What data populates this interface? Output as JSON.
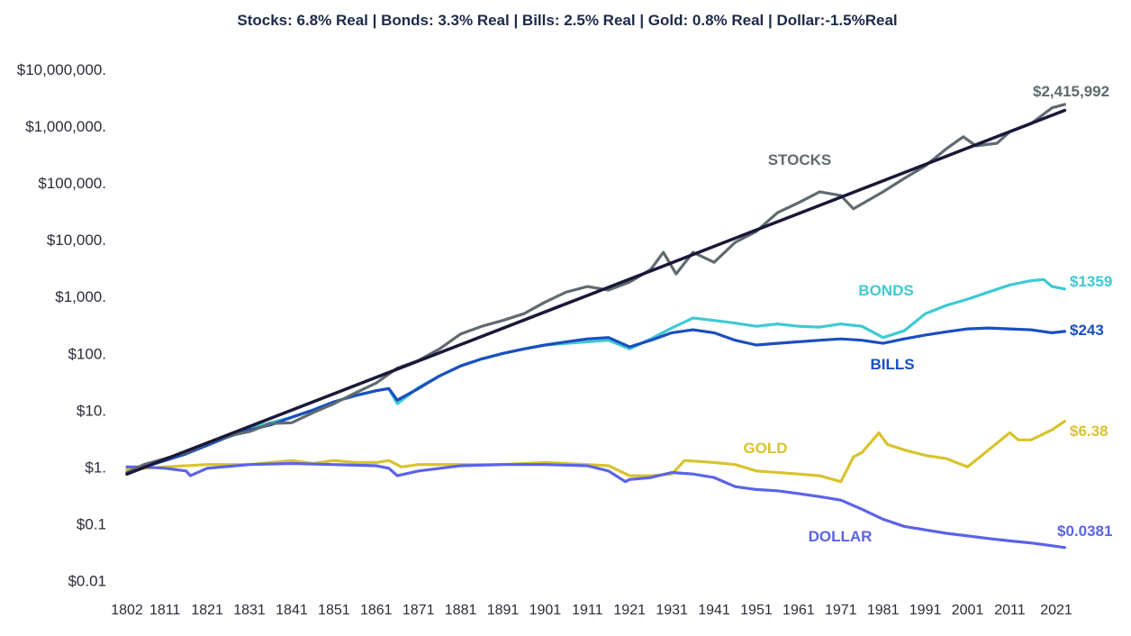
{
  "chart_data": {
    "type": "line",
    "title": "Stocks: 6.8% Real | Bonds: 3.3% Real | Bills: 2.5% Real | Gold:   0.8% Real | Dollar:-1.5%Real",
    "xlabel": "",
    "ylabel": "",
    "y_scale": "log",
    "ylim": [
      0.01,
      10000000
    ],
    "xlim": [
      1802,
      2022
    ],
    "y_ticks": [
      {
        "value": 10000000,
        "label": "$10,000,000."
      },
      {
        "value": 1000000,
        "label": "$1,000,000."
      },
      {
        "value": 100000,
        "label": "$100,000."
      },
      {
        "value": 10000,
        "label": "$10,000."
      },
      {
        "value": 1000,
        "label": "$1,000."
      },
      {
        "value": 100,
        "label": "$100."
      },
      {
        "value": 10,
        "label": "$10."
      },
      {
        "value": 1,
        "label": "$1."
      },
      {
        "value": 0.1,
        "label": "$0.1"
      },
      {
        "value": 0.01,
        "label": "$0.01"
      }
    ],
    "x_ticks": [
      "1802",
      "1811",
      "1821",
      "1831",
      "1841",
      "1851",
      "1861",
      "1871",
      "1881",
      "1891",
      "1901",
      "1911",
      "1921",
      "1931",
      "1941",
      "1951",
      "1961",
      "1971",
      "1981",
      "1991",
      "2001",
      "2011",
      "2021"
    ],
    "series": [
      {
        "name": "STOCKS",
        "color": "#5f6b70",
        "end_label": "$2,415,992",
        "x": [
          1802,
          1806,
          1811,
          1816,
          1821,
          1826,
          1831,
          1836,
          1841,
          1846,
          1851,
          1856,
          1861,
          1866,
          1871,
          1876,
          1881,
          1886,
          1891,
          1896,
          1901,
          1906,
          1911,
          1916,
          1921,
          1926,
          1929,
          1932,
          1936,
          1941,
          1946,
          1951,
          1956,
          1961,
          1966,
          1971,
          1974,
          1981,
          1986,
          1991,
          1996,
          2000,
          2003,
          2008,
          2011,
          2016,
          2021,
          2024
        ],
        "values": [
          0.8,
          1.1,
          1.4,
          1.8,
          2.6,
          3.5,
          4.2,
          5.8,
          6,
          9,
          13,
          20,
          30,
          55,
          75,
          120,
          220,
          300,
          380,
          500,
          800,
          1200,
          1500,
          1300,
          1800,
          3000,
          6000,
          2500,
          6000,
          4000,
          9000,
          14000,
          30000,
          45000,
          70000,
          60000,
          35000,
          70000,
          120000,
          200000,
          400000,
          650000,
          450000,
          500000,
          800000,
          1100000,
          2100000,
          2415992
        ]
      },
      {
        "name": "BONDS",
        "color": "#3fc9d3",
        "end_label": "$1359",
        "x": [
          1802,
          1806,
          1811,
          1816,
          1821,
          1826,
          1831,
          1836,
          1841,
          1846,
          1851,
          1856,
          1861,
          1864,
          1866,
          1871,
          1876,
          1881,
          1886,
          1891,
          1896,
          1901,
          1906,
          1911,
          1916,
          1921,
          1926,
          1931,
          1936,
          1941,
          1946,
          1951,
          1956,
          1961,
          1966,
          1971,
          1976,
          1981,
          1986,
          1991,
          1996,
          2001,
          2006,
          2011,
          2016,
          2019,
          2021,
          2024
        ],
        "values": [
          0.8,
          1.0,
          1.3,
          1.7,
          2.5,
          3.5,
          4.8,
          6.0,
          7.5,
          10,
          14,
          18,
          22,
          24,
          13,
          25,
          40,
          60,
          80,
          100,
          120,
          140,
          150,
          160,
          170,
          120,
          180,
          280,
          420,
          380,
          340,
          300,
          330,
          300,
          290,
          330,
          300,
          190,
          250,
          500,
          700,
          900,
          1200,
          1600,
          1900,
          2000,
          1500,
          1359
        ]
      },
      {
        "name": "BILLS",
        "color": "#1a4fbf",
        "end_label": "$243",
        "x": [
          1802,
          1806,
          1811,
          1816,
          1821,
          1826,
          1831,
          1836,
          1841,
          1846,
          1851,
          1856,
          1861,
          1864,
          1866,
          1871,
          1876,
          1881,
          1886,
          1891,
          1896,
          1901,
          1906,
          1911,
          1916,
          1921,
          1926,
          1931,
          1936,
          1941,
          1946,
          1951,
          1956,
          1961,
          1966,
          1971,
          1976,
          1981,
          1986,
          1991,
          1996,
          2001,
          2006,
          2011,
          2016,
          2021,
          2024
        ],
        "values": [
          0.8,
          1.0,
          1.3,
          1.7,
          2.4,
          3.4,
          4.5,
          5.5,
          7.5,
          10,
          14,
          18,
          22,
          24,
          15,
          24,
          40,
          60,
          80,
          100,
          120,
          140,
          160,
          180,
          190,
          130,
          170,
          230,
          260,
          230,
          170,
          140,
          150,
          160,
          170,
          180,
          170,
          150,
          180,
          210,
          240,
          270,
          280,
          270,
          260,
          230,
          243
        ]
      },
      {
        "name": "GOLD",
        "color": "#d8c32e",
        "end_label": "$6.38",
        "x": [
          1802,
          1811,
          1821,
          1831,
          1841,
          1846,
          1851,
          1856,
          1861,
          1864,
          1867,
          1871,
          1881,
          1891,
          1901,
          1911,
          1916,
          1921,
          1926,
          1931,
          1934,
          1941,
          1946,
          1951,
          1961,
          1966,
          1971,
          1974,
          1976,
          1980,
          1982,
          1986,
          1991,
          1996,
          2001,
          2006,
          2011,
          2013,
          2016,
          2021,
          2024
        ],
        "values": [
          0.9,
          1.0,
          1.1,
          1.1,
          1.3,
          1.15,
          1.3,
          1.2,
          1.2,
          1.3,
          1.0,
          1.1,
          1.1,
          1.1,
          1.2,
          1.1,
          1.05,
          0.7,
          0.7,
          0.75,
          1.3,
          1.2,
          1.1,
          0.85,
          0.75,
          0.7,
          0.55,
          1.5,
          1.8,
          4.0,
          2.5,
          2.0,
          1.6,
          1.4,
          1.0,
          2.0,
          4.0,
          3.0,
          3.0,
          4.5,
          6.38
        ]
      },
      {
        "name": "DOLLAR",
        "color": "#5b63e8",
        "end_label": "$0.0381",
        "x": [
          1802,
          1806,
          1811,
          1816,
          1817,
          1821,
          1831,
          1841,
          1851,
          1861,
          1864,
          1866,
          1871,
          1881,
          1891,
          1901,
          1911,
          1916,
          1920,
          1921,
          1926,
          1931,
          1936,
          1941,
          1946,
          1951,
          1956,
          1961,
          1966,
          1971,
          1976,
          1981,
          1986,
          1991,
          1996,
          2001,
          2006,
          2011,
          2016,
          2021,
          2024
        ],
        "values": [
          1.0,
          1.0,
          0.95,
          0.85,
          0.7,
          0.95,
          1.1,
          1.15,
          1.1,
          1.05,
          0.95,
          0.7,
          0.85,
          1.05,
          1.1,
          1.1,
          1.05,
          0.85,
          0.55,
          0.6,
          0.65,
          0.8,
          0.75,
          0.65,
          0.45,
          0.4,
          0.38,
          0.34,
          0.3,
          0.26,
          0.18,
          0.12,
          0.09,
          0.078,
          0.068,
          0.061,
          0.055,
          0.05,
          0.046,
          0.041,
          0.0381
        ]
      },
      {
        "name": "Trend",
        "color": "#1a1838",
        "end_label": "",
        "x": [
          1802,
          2024
        ],
        "values": [
          0.75,
          1900000
        ]
      }
    ],
    "series_labels": [
      {
        "name": "STOCKS",
        "text": "STOCKS",
        "color": "#5f6b70"
      },
      {
        "name": "BONDS",
        "text": "BONDS",
        "color": "#3fc9d3"
      },
      {
        "name": "BILLS",
        "text": "BILLS",
        "color": "#1a4fbf"
      },
      {
        "name": "GOLD",
        "text": "GOLD",
        "color": "#d8c32e"
      },
      {
        "name": "DOLLAR",
        "text": "DOLLAR",
        "color": "#5b63e8"
      }
    ]
  }
}
